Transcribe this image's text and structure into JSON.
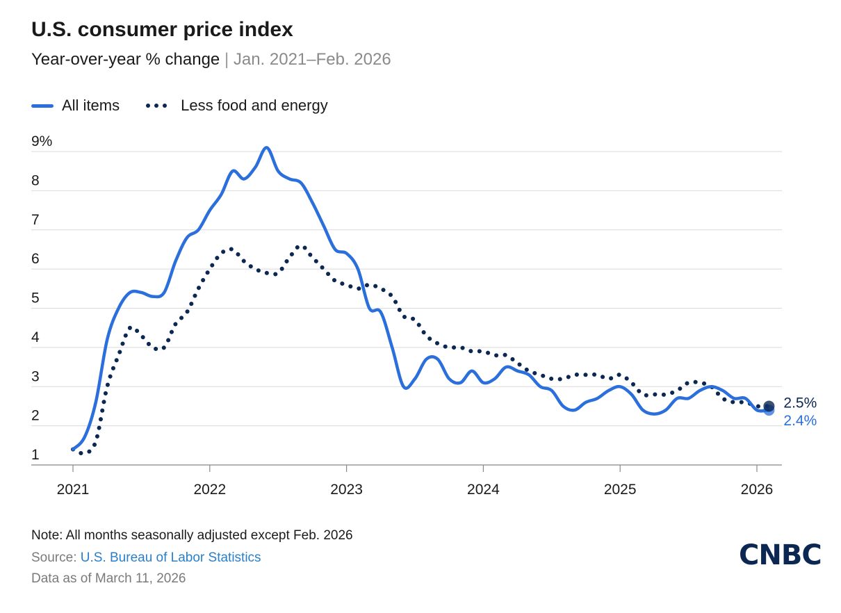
{
  "title": "U.S. consumer price index",
  "subtitle": {
    "main": "Year-over-year % change",
    "separator": "|",
    "range": "Jan. 2021–Feb. 2026"
  },
  "legend": [
    {
      "label": "All items",
      "style": "solid",
      "color": "#2a6fdb"
    },
    {
      "label": "Less food and energy",
      "style": "dotted",
      "color": "#0b2752"
    }
  ],
  "footer": {
    "note": "Note: All months seasonally adjusted except Feb. 2026",
    "source_prefix": "Source: ",
    "source_name": "U.S. Bureau of Labor Statistics",
    "as_of": "Data as of March 11, 2026"
  },
  "logo": "CNBC",
  "chart_data": {
    "type": "line",
    "title": "U.S. consumer price index",
    "subtitle": "Year-over-year % change | Jan. 2021–Feb. 2026",
    "xlabel": "",
    "ylabel": "",
    "ylim": [
      1,
      9
    ],
    "y_ticks": [
      {
        "value": 9,
        "label": "9%"
      },
      {
        "value": 8,
        "label": "8"
      },
      {
        "value": 7,
        "label": "7"
      },
      {
        "value": 6,
        "label": "6"
      },
      {
        "value": 5,
        "label": "5"
      },
      {
        "value": 4,
        "label": "4"
      },
      {
        "value": 3,
        "label": "3"
      },
      {
        "value": 2,
        "label": "2"
      },
      {
        "value": 1,
        "label": "1"
      }
    ],
    "x_start": "2021-01",
    "x_ticks": [
      "2021",
      "2022",
      "2023",
      "2024",
      "2025",
      "2026"
    ],
    "grid": true,
    "legend_position": "top-left",
    "series": [
      {
        "name": "All items",
        "style": "solid",
        "color": "#2a6fdb",
        "end_label": "2.4%",
        "values": [
          1.4,
          1.7,
          2.6,
          4.2,
          5.0,
          5.4,
          5.4,
          5.3,
          5.4,
          6.2,
          6.8,
          7.0,
          7.5,
          7.9,
          8.5,
          8.3,
          8.6,
          9.1,
          8.5,
          8.3,
          8.2,
          7.7,
          7.1,
          6.5,
          6.4,
          6.0,
          5.0,
          4.9,
          4.0,
          3.0,
          3.2,
          3.7,
          3.7,
          3.2,
          3.1,
          3.4,
          3.1,
          3.2,
          3.5,
          3.4,
          3.3,
          3.0,
          2.9,
          2.5,
          2.4,
          2.6,
          2.7,
          2.9,
          3.0,
          2.8,
          2.4,
          2.3,
          2.4,
          2.7,
          2.7,
          2.9,
          3.0,
          2.9,
          2.7,
          2.7,
          2.4,
          2.4
        ]
      },
      {
        "name": "Less food and energy",
        "style": "dotted",
        "color": "#0b2752",
        "end_label": "2.5%",
        "values": [
          1.4,
          1.3,
          1.6,
          3.0,
          3.8,
          4.5,
          4.3,
          4.0,
          4.0,
          4.6,
          4.9,
          5.5,
          6.0,
          6.4,
          6.5,
          6.2,
          6.0,
          5.9,
          5.9,
          6.3,
          6.6,
          6.3,
          6.0,
          5.7,
          5.6,
          5.5,
          5.6,
          5.5,
          5.3,
          4.8,
          4.7,
          4.3,
          4.1,
          4.0,
          4.0,
          3.9,
          3.9,
          3.8,
          3.8,
          3.6,
          3.4,
          3.3,
          3.2,
          3.2,
          3.3,
          3.3,
          3.3,
          3.2,
          3.3,
          3.1,
          2.8,
          2.8,
          2.8,
          2.9,
          3.1,
          3.1,
          3.0,
          2.7,
          2.6,
          2.6,
          2.5,
          2.5
        ]
      }
    ]
  }
}
